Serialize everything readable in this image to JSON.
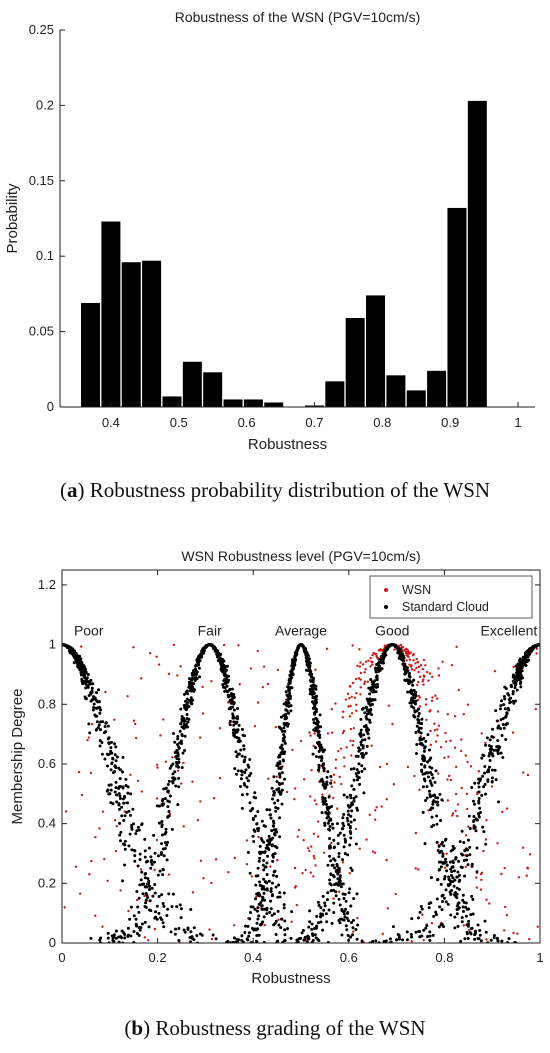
{
  "figure_a": {
    "caption_letter": "a",
    "caption_text": "Robustness probability distribution of the WSN"
  },
  "figure_b": {
    "caption_letter": "b",
    "caption_text": "Robustness grading of the WSN"
  },
  "chart_data": [
    {
      "type": "bar",
      "title": "Robustness of the WSN (PGV=10cm/s)",
      "xlabel": "Robustness",
      "ylabel": "Probability",
      "xlim": [
        0.325,
        1.025
      ],
      "ylim": [
        0,
        0.25
      ],
      "xticks": [
        0.4,
        0.5,
        0.6,
        0.7,
        0.8,
        0.9,
        1
      ],
      "xtick_labels": [
        "0.4",
        "0.5",
        "0.6",
        "0.7",
        "0.8",
        "0.9",
        "1"
      ],
      "yticks": [
        0,
        0.05,
        0.1,
        0.15,
        0.2,
        0.25
      ],
      "ytick_labels": [
        "0",
        "0.05",
        "0.1",
        "0.15",
        "0.2",
        "0.25"
      ],
      "bar_width": 0.028,
      "x": [
        0.37,
        0.4,
        0.43,
        0.46,
        0.49,
        0.52,
        0.55,
        0.58,
        0.61,
        0.64,
        0.67,
        0.7,
        0.73,
        0.76,
        0.79,
        0.82,
        0.85,
        0.88,
        0.91,
        0.94,
        0.97,
        1.0
      ],
      "values": [
        0.069,
        0.123,
        0.096,
        0.097,
        0.007,
        0.03,
        0.023,
        0.005,
        0.005,
        0.003,
        0.0,
        0.001,
        0.017,
        0.059,
        0.074,
        0.021,
        0.011,
        0.024,
        0.132,
        0.203,
        0.0,
        0.0
      ],
      "bar_color": "#000000",
      "grid": false
    },
    {
      "type": "scatter",
      "title": "WSN Robustness level (PGV=10cm/s)",
      "xlabel": "Robustness",
      "ylabel": "Membership Degree",
      "xlim": [
        0,
        1
      ],
      "ylim": [
        0,
        1.25
      ],
      "xticks": [
        0,
        0.2,
        0.4,
        0.6,
        0.8,
        1
      ],
      "xtick_labels": [
        "0",
        "0.2",
        "0.4",
        "0.6",
        "0.8",
        "1"
      ],
      "yticks": [
        0,
        0.2,
        0.4,
        0.6,
        0.8,
        1,
        1.2
      ],
      "ytick_labels": [
        "0",
        "0.2",
        "0.4",
        "0.6",
        "0.8",
        "1",
        "1.2"
      ],
      "grid": false,
      "legend_position": "top-right",
      "series": [
        {
          "name": "WSN",
          "color": "#cc1a1a",
          "marker": "dot"
        },
        {
          "name": "Standard Cloud",
          "color": "#000000",
          "marker": "dot"
        }
      ],
      "clouds": [
        {
          "label": "Poor",
          "ex": 0.0,
          "en": 0.103
        },
        {
          "label": "Fair",
          "ex": 0.309,
          "en": 0.069
        },
        {
          "label": "Average",
          "ex": 0.5,
          "en": 0.043
        },
        {
          "label": "Good",
          "ex": 0.691,
          "en": 0.069
        },
        {
          "label": "Excellent",
          "ex": 1.0,
          "en": 0.103
        }
      ],
      "cloud_label_y": 1.04,
      "wsn_peak_x": 0.69
    }
  ]
}
